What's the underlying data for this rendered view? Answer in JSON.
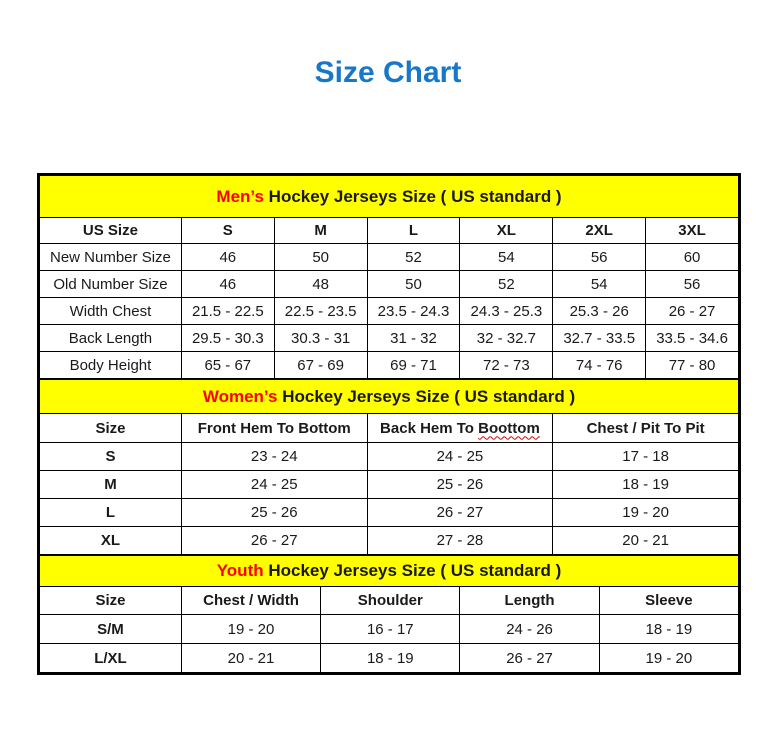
{
  "page_title": "Size Chart",
  "colors": {
    "title_blue": "#1777C8",
    "band_yellow": "#FFFF00",
    "highlight_red": "#FF0000",
    "border_black": "#000000",
    "squiggle_red": "#E00000"
  },
  "chart_data": [
    {
      "type": "table",
      "id": "mens",
      "heading_highlight": "Men’s",
      "heading_rest": " Hockey Jerseys Size ( US standard )",
      "columns": [
        "US Size",
        "S",
        "M",
        "L",
        "XL",
        "2XL",
        "3XL"
      ],
      "rows": [
        [
          "New Number Size",
          "46",
          "50",
          "52",
          "54",
          "56",
          "60"
        ],
        [
          "Old Number Size",
          "46",
          "48",
          "50",
          "52",
          "54",
          "56"
        ],
        [
          "Width Chest",
          "21.5 - 22.5",
          "22.5 - 23.5",
          "23.5 - 24.3",
          "24.3 - 25.3",
          "25.3 - 26",
          "26 - 27"
        ],
        [
          "Back Length",
          "29.5 - 30.3",
          "30.3 - 31",
          "31 - 32",
          "32 - 32.7",
          "32.7 - 33.5",
          "33.5 - 34.6"
        ],
        [
          "Body Height",
          "65 - 67",
          "67 - 69",
          "69 - 71",
          "72 - 73",
          "74 - 76",
          "77 - 80"
        ]
      ]
    },
    {
      "type": "table",
      "id": "womens",
      "heading_highlight": "Women’s",
      "heading_rest": " Hockey Jerseys Size ( US standard )",
      "columns": [
        "Size",
        "Front Hem To Bottom",
        "Back Hem To Boottom",
        "Chest / Pit To Pit"
      ],
      "misspelled_word": "Boottom",
      "rows": [
        [
          "S",
          "23 - 24",
          "24 - 25",
          "17 - 18"
        ],
        [
          "M",
          "24 - 25",
          "25 - 26",
          "18 - 19"
        ],
        [
          "L",
          "25 - 26",
          "26 - 27",
          "19 - 20"
        ],
        [
          "XL",
          "26 - 27",
          "27 - 28",
          "20 - 21"
        ]
      ]
    },
    {
      "type": "table",
      "id": "youth",
      "heading_highlight": "Youth",
      "heading_rest": " Hockey Jerseys Size ( US standard )",
      "columns": [
        "Size",
        "Chest / Width",
        "Shoulder",
        "Length",
        "Sleeve"
      ],
      "rows": [
        [
          "S/M",
          "19 - 20",
          "16 - 17",
          "24 - 26",
          "18 - 19"
        ],
        [
          "L/XL",
          "20 - 21",
          "18 - 19",
          "26 - 27",
          "19 - 20"
        ]
      ]
    }
  ]
}
